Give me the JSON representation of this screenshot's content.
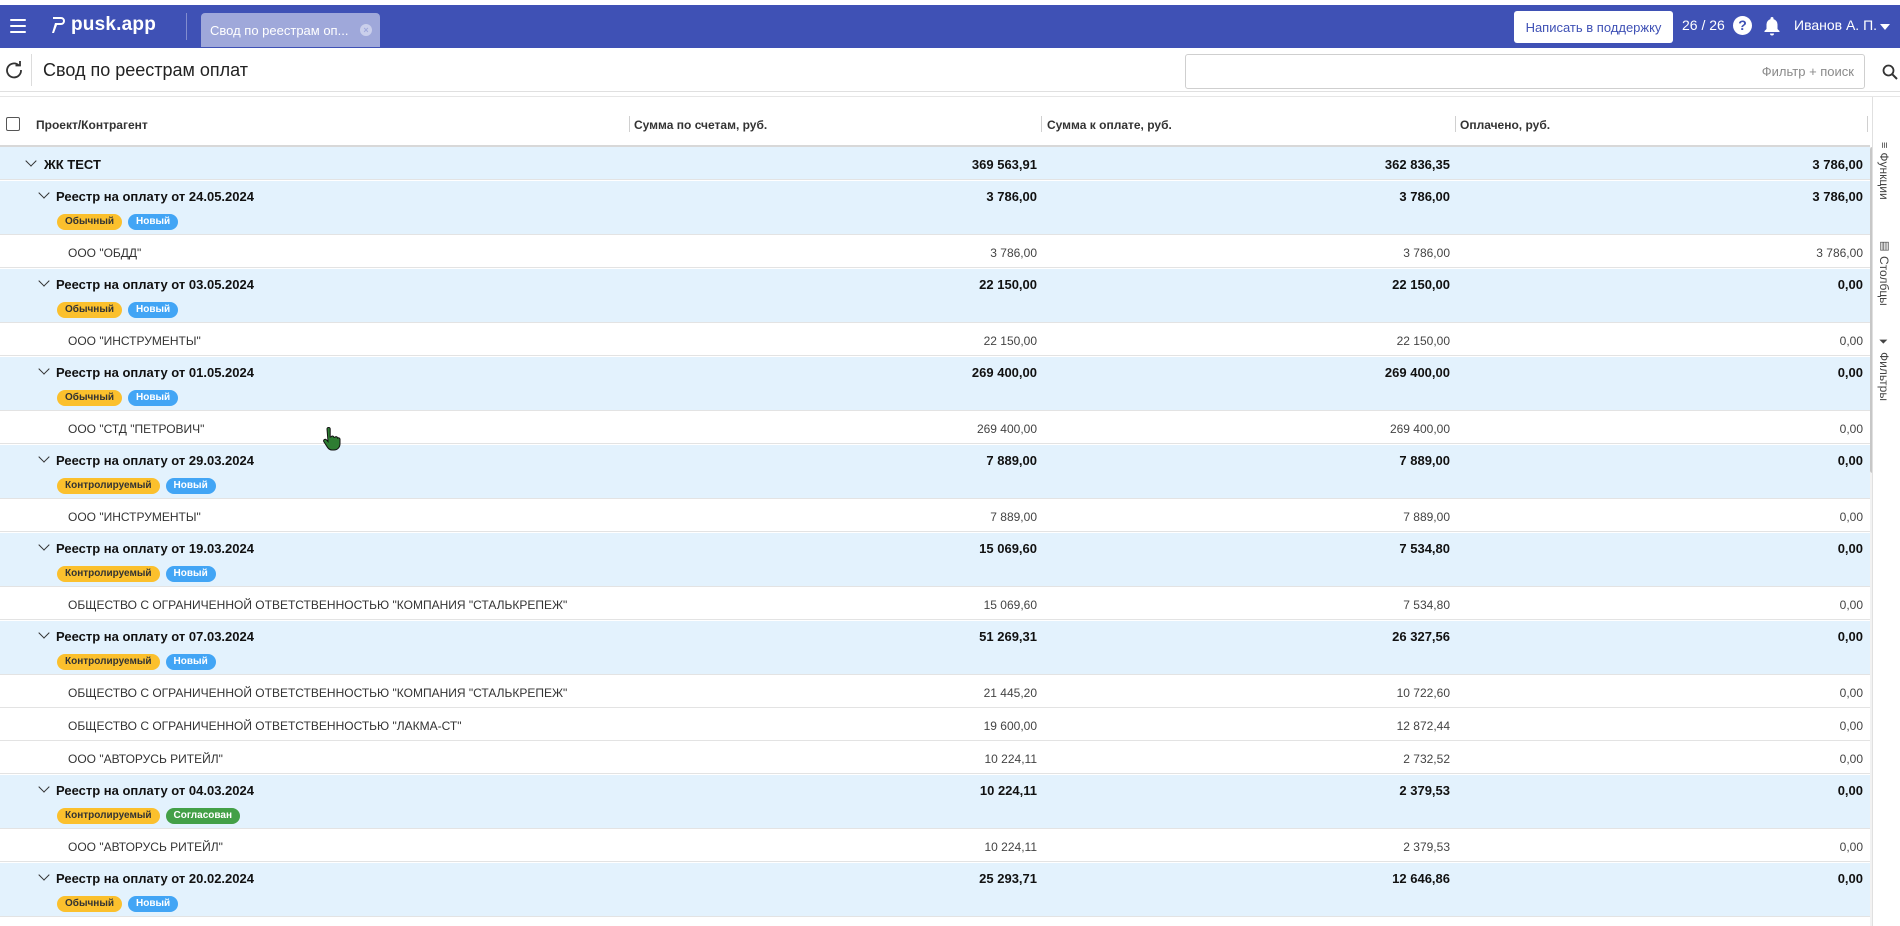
{
  "topbar": {
    "logo": "pusk.app",
    "tab_label": "Свод по реестрам оп...",
    "tab_close": "×",
    "support_button": "Написать в поддержку",
    "counter": "26 / 26",
    "help": "?",
    "user_name": "Иванов А. П.",
    "accent_color": "#3f51b5"
  },
  "subheader": {
    "title": "Свод по реестрам оплат",
    "search_placeholder": "Фильтр + поиск"
  },
  "columns": [
    "Проект/Контрагент",
    "Сумма по счетам, руб.",
    "Сумма к оплате, руб.",
    "Оплачено, руб."
  ],
  "total": {
    "label": "ЖК ТЕСТ",
    "sum": "369 563,91",
    "to_pay": "362 836,35",
    "paid": "3 786,00"
  },
  "groups": [
    {
      "label": "Реестр на оплату от 24.05.2024",
      "sum": "3 786,00",
      "to_pay": "3 786,00",
      "paid": "3 786,00",
      "badges": [
        {
          "text": "Обычный",
          "color": "yellow"
        },
        {
          "text": "Новый",
          "color": "blue"
        }
      ],
      "rows": [
        {
          "name": "ООО \"ОБДД\"",
          "sum": "3 786,00",
          "to_pay": "3 786,00",
          "paid": "3 786,00"
        }
      ]
    },
    {
      "label": "Реестр на оплату от 03.05.2024",
      "sum": "22 150,00",
      "to_pay": "22 150,00",
      "paid": "0,00",
      "badges": [
        {
          "text": "Обычный",
          "color": "yellow"
        },
        {
          "text": "Новый",
          "color": "blue"
        }
      ],
      "rows": [
        {
          "name": "ООО \"ИНСТРУМЕНТЫ\"",
          "sum": "22 150,00",
          "to_pay": "22 150,00",
          "paid": "0,00"
        }
      ]
    },
    {
      "label": "Реестр на оплату от 01.05.2024",
      "sum": "269 400,00",
      "to_pay": "269 400,00",
      "paid": "0,00",
      "badges": [
        {
          "text": "Обычный",
          "color": "yellow"
        },
        {
          "text": "Новый",
          "color": "blue"
        }
      ],
      "rows": [
        {
          "name": "ООО \"СТД \"ПЕТРОВИЧ\"",
          "sum": "269 400,00",
          "to_pay": "269 400,00",
          "paid": "0,00"
        }
      ]
    },
    {
      "label": "Реестр на оплату от 29.03.2024",
      "sum": "7 889,00",
      "to_pay": "7 889,00",
      "paid": "0,00",
      "badges": [
        {
          "text": "Контролируемый",
          "color": "yellow"
        },
        {
          "text": "Новый",
          "color": "blue"
        }
      ],
      "rows": [
        {
          "name": "ООО \"ИНСТРУМЕНТЫ\"",
          "sum": "7 889,00",
          "to_pay": "7 889,00",
          "paid": "0,00"
        }
      ]
    },
    {
      "label": "Реестр на оплату от 19.03.2024",
      "sum": "15 069,60",
      "to_pay": "7 534,80",
      "paid": "0,00",
      "badges": [
        {
          "text": "Контролируемый",
          "color": "yellow"
        },
        {
          "text": "Новый",
          "color": "blue"
        }
      ],
      "rows": [
        {
          "name": "ОБЩЕСТВО С ОГРАНИЧЕННОЙ ОТВЕТСТВЕННОСТЬЮ \"КОМПАНИЯ \"СТАЛЬКРЕПЕЖ\"",
          "sum": "15 069,60",
          "to_pay": "7 534,80",
          "paid": "0,00"
        }
      ]
    },
    {
      "label": "Реестр на оплату от 07.03.2024",
      "sum": "51 269,31",
      "to_pay": "26 327,56",
      "paid": "0,00",
      "badges": [
        {
          "text": "Контролируемый",
          "color": "yellow"
        },
        {
          "text": "Новый",
          "color": "blue"
        }
      ],
      "rows": [
        {
          "name": "ОБЩЕСТВО С ОГРАНИЧЕННОЙ ОТВЕТСТВЕННОСТЬЮ \"КОМПАНИЯ \"СТАЛЬКРЕПЕЖ\"",
          "sum": "21 445,20",
          "to_pay": "10 722,60",
          "paid": "0,00"
        },
        {
          "name": "ОБЩЕСТВО С ОГРАНИЧЕННОЙ ОТВЕТСТВЕННОСТЬЮ \"ЛАКМА-СТ\"",
          "sum": "19 600,00",
          "to_pay": "12 872,44",
          "paid": "0,00"
        },
        {
          "name": "ООО \"АВТОРУСЬ РИТЕЙЛ\"",
          "sum": "10 224,11",
          "to_pay": "2 732,52",
          "paid": "0,00"
        }
      ]
    },
    {
      "label": "Реестр на оплату от 04.03.2024",
      "sum": "10 224,11",
      "to_pay": "2 379,53",
      "paid": "0,00",
      "badges": [
        {
          "text": "Контролируемый",
          "color": "yellow"
        },
        {
          "text": "Согласован",
          "color": "green"
        }
      ],
      "rows": [
        {
          "name": "ООО \"АВТОРУСЬ РИТЕЙЛ\"",
          "sum": "10 224,11",
          "to_pay": "2 379,53",
          "paid": "0,00"
        }
      ]
    },
    {
      "label": "Реестр на оплату от 20.02.2024",
      "sum": "25 293,71",
      "to_pay": "12 646,86",
      "paid": "0,00",
      "badges": [
        {
          "text": "Обычный",
          "color": "yellow"
        },
        {
          "text": "Новый",
          "color": "blue"
        }
      ],
      "rows": []
    }
  ],
  "side_panel": [
    {
      "label": "Функции",
      "icon": "menu-lines-icon"
    },
    {
      "label": "Столбцы",
      "icon": "columns-icon"
    },
    {
      "label": "Фильтры",
      "icon": "funnel-icon"
    }
  ]
}
